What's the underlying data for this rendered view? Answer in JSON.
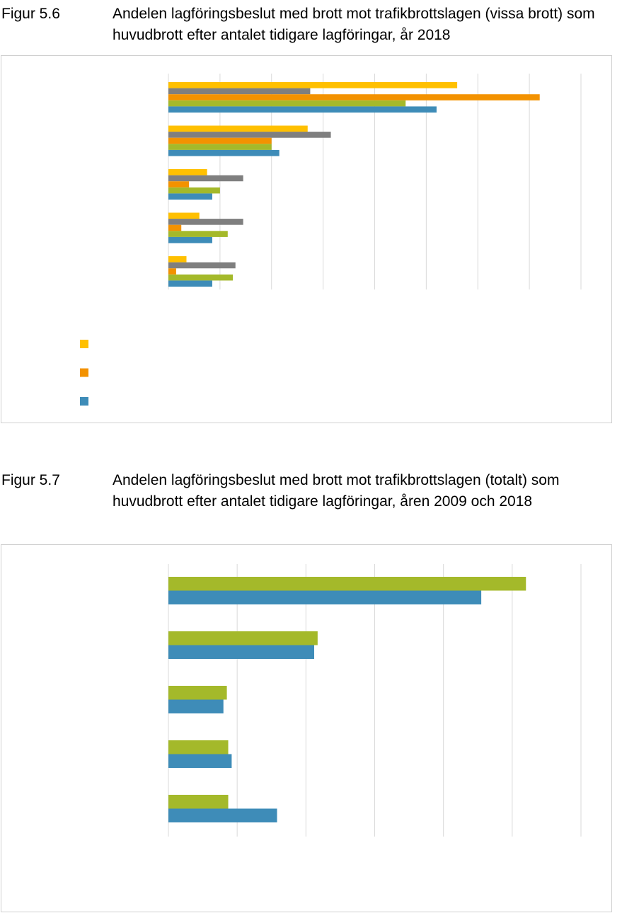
{
  "figure_5_6": {
    "label": "Figur 5.6",
    "title": "Andelen lagföringsbeslut med brott mot trafikbrottslagen (vissa brott) som huvudbrott efter antalet tidigare lagföringar, år 2018"
  },
  "figure_5_7": {
    "label": "Figur 5.7",
    "title": "Andelen lagföringsbeslut med brott mot trafikbrottslagen (totalt) som huvudbrott efter antalet tidigare lagföringar, åren 2009 och 2018"
  },
  "chart_data": [
    {
      "type": "bar",
      "orientation": "horizontal",
      "title": "",
      "xlabel": "",
      "ylabel": "",
      "xlim": [
        0,
        8
      ],
      "gridlines": 8,
      "legend": "bottom-left",
      "categories": [
        "",
        "",
        "",
        "",
        ""
      ],
      "series": [
        {
          "color": "#FFC000",
          "values": [
            5.6,
            2.7,
            0.75,
            0.6,
            0.35
          ]
        },
        {
          "color": "#7F7F7F",
          "values": [
            2.75,
            3.15,
            1.45,
            1.45,
            1.3
          ]
        },
        {
          "color": "#F39200",
          "values": [
            7.2,
            2.0,
            0.4,
            0.25,
            0.15
          ]
        },
        {
          "color": "#A4B92A",
          "values": [
            4.6,
            2.0,
            1.0,
            1.15,
            1.25
          ]
        },
        {
          "color": "#3E8CB8",
          "values": [
            5.2,
            2.15,
            0.85,
            0.85,
            0.85
          ]
        }
      ],
      "legend_markers": [
        {
          "color": "#FFC000"
        },
        {
          "color": "#F39200"
        },
        {
          "color": "#3E8CB8"
        }
      ]
    },
    {
      "type": "bar",
      "orientation": "horizontal",
      "title": "",
      "xlabel": "",
      "ylabel": "",
      "xlim": [
        0,
        6
      ],
      "gridlines": 6,
      "categories": [
        "",
        "",
        "",
        "",
        ""
      ],
      "series": [
        {
          "color": "#A4B92A",
          "values": [
            5.2,
            2.17,
            0.85,
            0.87,
            0.87
          ]
        },
        {
          "color": "#3E8CB8",
          "values": [
            4.55,
            2.12,
            0.8,
            0.92,
            1.58
          ]
        }
      ]
    }
  ]
}
